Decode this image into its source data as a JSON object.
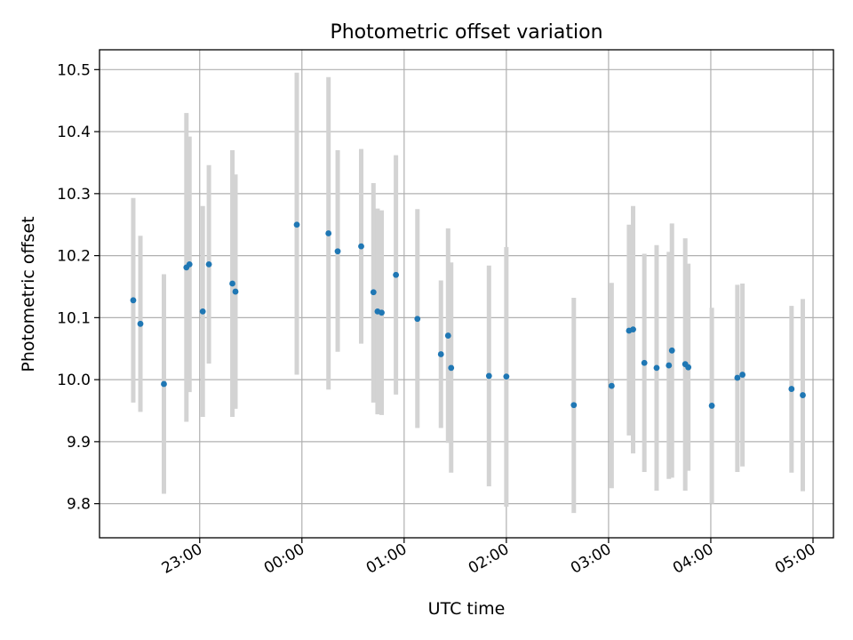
{
  "chart_data": {
    "type": "scatter",
    "title": "Photometric offset variation",
    "xlabel": "UTC time",
    "ylabel": "Photometric offset",
    "grid": true,
    "x_unit": "hours relative to 00:00 UTC",
    "xlim": [
      -1.98,
      5.2
    ],
    "ylim": [
      9.745,
      10.532
    ],
    "x_ticks": [
      {
        "value": -1,
        "label": "23:00"
      },
      {
        "value": 0,
        "label": "00:00"
      },
      {
        "value": 1,
        "label": "01:00"
      },
      {
        "value": 2,
        "label": "02:00"
      },
      {
        "value": 3,
        "label": "03:00"
      },
      {
        "value": 4,
        "label": "04:00"
      },
      {
        "value": 5,
        "label": "05:00"
      }
    ],
    "y_ticks": [
      {
        "value": 9.8,
        "label": "9.8"
      },
      {
        "value": 9.9,
        "label": "9.9"
      },
      {
        "value": 10.0,
        "label": "10.0"
      },
      {
        "value": 10.1,
        "label": "10.1"
      },
      {
        "value": 10.2,
        "label": "10.2"
      },
      {
        "value": 10.3,
        "label": "10.3"
      },
      {
        "value": 10.4,
        "label": "10.4"
      },
      {
        "value": 10.5,
        "label": "10.5"
      }
    ],
    "colors": {
      "point": "#1f77b4",
      "errorbar": "#d3d3d3",
      "grid": "#b0b0b0",
      "axis": "#000000"
    },
    "points": [
      {
        "x": -1.65,
        "y": 10.128,
        "lo": 9.963,
        "hi": 10.293
      },
      {
        "x": -1.58,
        "y": 10.09,
        "lo": 9.948,
        "hi": 10.232
      },
      {
        "x": -1.35,
        "y": 9.993,
        "lo": 9.816,
        "hi": 10.17
      },
      {
        "x": -1.13,
        "y": 10.181,
        "lo": 9.932,
        "hi": 10.43
      },
      {
        "x": -1.1,
        "y": 10.186,
        "lo": 9.98,
        "hi": 10.392
      },
      {
        "x": -0.97,
        "y": 10.11,
        "lo": 9.94,
        "hi": 10.28
      },
      {
        "x": -0.91,
        "y": 10.186,
        "lo": 10.026,
        "hi": 10.346
      },
      {
        "x": -0.68,
        "y": 10.155,
        "lo": 9.94,
        "hi": 10.37
      },
      {
        "x": -0.65,
        "y": 10.142,
        "lo": 9.953,
        "hi": 10.331
      },
      {
        "x": -0.05,
        "y": 10.25,
        "lo": 10.008,
        "hi": 10.495
      },
      {
        "x": 0.26,
        "y": 10.236,
        "lo": 9.984,
        "hi": 10.488
      },
      {
        "x": 0.35,
        "y": 10.207,
        "lo": 10.045,
        "hi": 10.37
      },
      {
        "x": 0.58,
        "y": 10.215,
        "lo": 10.058,
        "hi": 10.372
      },
      {
        "x": 0.7,
        "y": 10.141,
        "lo": 9.963,
        "hi": 10.317
      },
      {
        "x": 0.74,
        "y": 10.11,
        "lo": 9.944,
        "hi": 10.276
      },
      {
        "x": 0.78,
        "y": 10.108,
        "lo": 9.943,
        "hi": 10.273
      },
      {
        "x": 0.92,
        "y": 10.169,
        "lo": 9.976,
        "hi": 10.362
      },
      {
        "x": 1.13,
        "y": 10.098,
        "lo": 9.922,
        "hi": 10.275
      },
      {
        "x": 1.36,
        "y": 10.041,
        "lo": 9.922,
        "hi": 10.16
      },
      {
        "x": 1.43,
        "y": 10.071,
        "lo": 9.898,
        "hi": 10.244
      },
      {
        "x": 1.46,
        "y": 10.019,
        "lo": 9.85,
        "hi": 10.189
      },
      {
        "x": 1.83,
        "y": 10.006,
        "lo": 9.828,
        "hi": 10.184
      },
      {
        "x": 2.0,
        "y": 10.005,
        "lo": 9.795,
        "hi": 10.214
      },
      {
        "x": 2.66,
        "y": 9.959,
        "lo": 9.785,
        "hi": 10.132
      },
      {
        "x": 3.03,
        "y": 9.99,
        "lo": 9.825,
        "hi": 10.156
      },
      {
        "x": 3.2,
        "y": 10.079,
        "lo": 9.91,
        "hi": 10.25
      },
      {
        "x": 3.24,
        "y": 10.081,
        "lo": 9.881,
        "hi": 10.28
      },
      {
        "x": 3.35,
        "y": 10.027,
        "lo": 9.851,
        "hi": 10.203
      },
      {
        "x": 3.47,
        "y": 10.019,
        "lo": 9.821,
        "hi": 10.217
      },
      {
        "x": 3.59,
        "y": 10.023,
        "lo": 9.84,
        "hi": 10.206
      },
      {
        "x": 3.62,
        "y": 10.047,
        "lo": 9.842,
        "hi": 10.252
      },
      {
        "x": 3.75,
        "y": 10.025,
        "lo": 9.821,
        "hi": 10.228
      },
      {
        "x": 3.78,
        "y": 10.02,
        "lo": 9.853,
        "hi": 10.187
      },
      {
        "x": 4.01,
        "y": 9.958,
        "lo": 9.8,
        "hi": 10.116
      },
      {
        "x": 4.26,
        "y": 10.003,
        "lo": 9.851,
        "hi": 10.153
      },
      {
        "x": 4.31,
        "y": 10.008,
        "lo": 9.86,
        "hi": 10.155
      },
      {
        "x": 4.79,
        "y": 9.985,
        "lo": 9.85,
        "hi": 10.119
      },
      {
        "x": 4.9,
        "y": 9.975,
        "lo": 9.82,
        "hi": 10.13
      }
    ]
  }
}
